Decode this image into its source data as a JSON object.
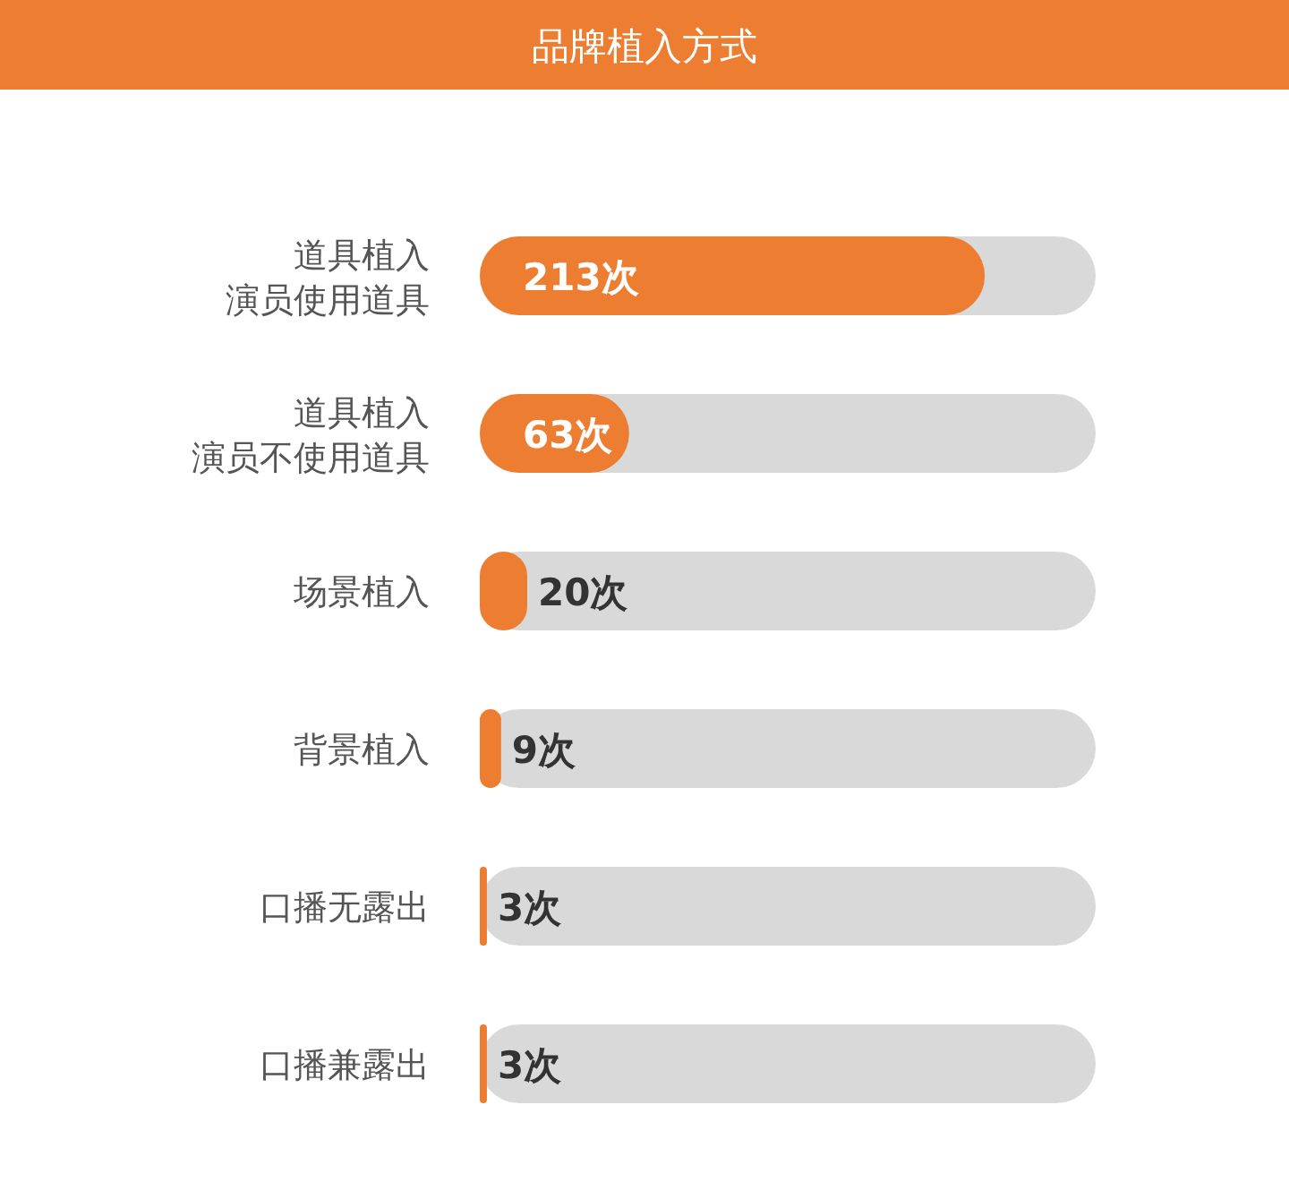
{
  "chart_data": {
    "type": "bar",
    "orientation": "horizontal",
    "title": "品牌植入方式",
    "categories": [
      "道具植入演员使用道具",
      "道具植入演员不使用道具",
      "场景植入",
      "背景植入",
      "口播无露出",
      "口播兼露出"
    ],
    "values": [
      213,
      63,
      20,
      9,
      3,
      3
    ],
    "value_labels": [
      "213次",
      "63次",
      "20次",
      "9次",
      "3次",
      "3次"
    ],
    "color": "#ed7d31"
  }
}
